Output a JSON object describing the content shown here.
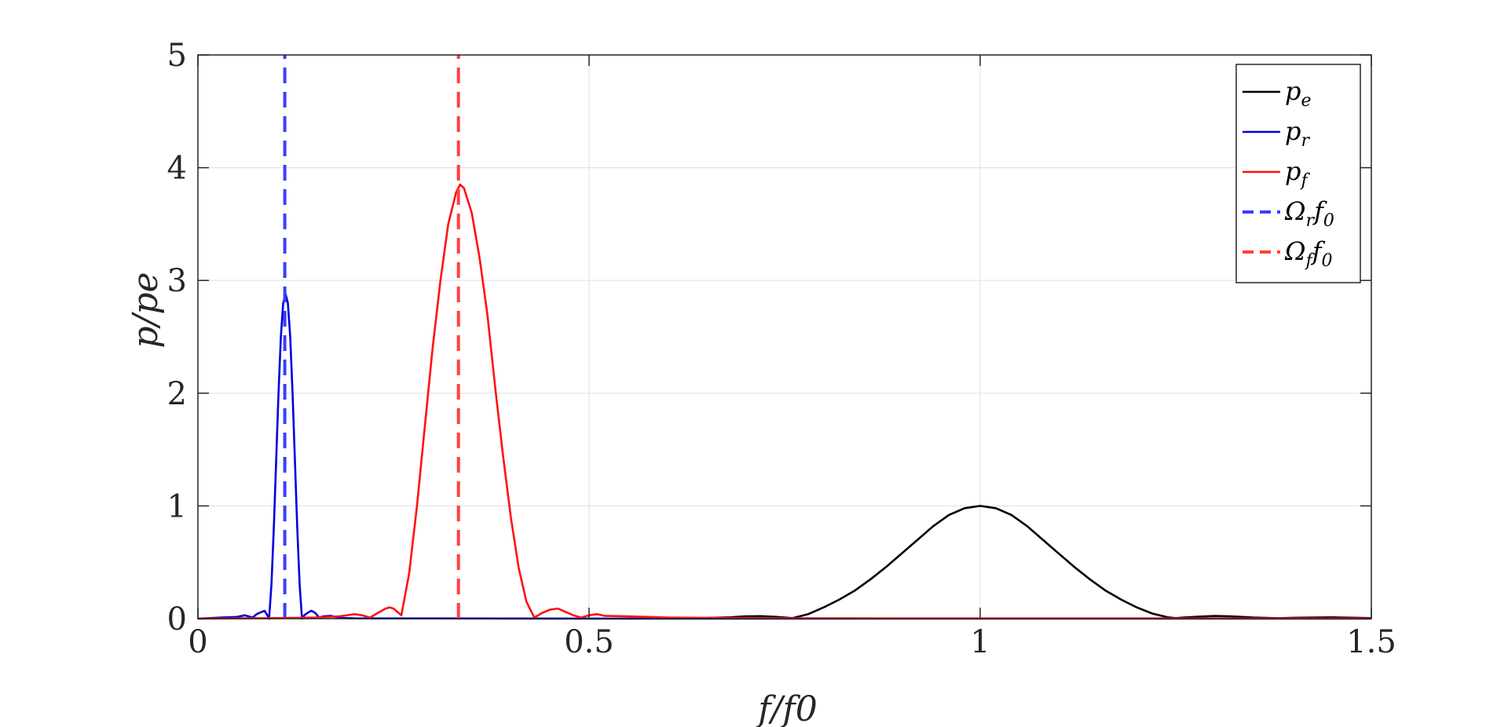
{
  "chart_data": {
    "type": "line",
    "title": "",
    "xlabel": "f/f0",
    "ylabel": "p/pe",
    "xlim": [
      0,
      1.5
    ],
    "ylim": [
      0,
      5
    ],
    "xticks": [
      "0",
      "0.5",
      "1",
      "1.5"
    ],
    "yticks": [
      "0",
      "1",
      "2",
      "3",
      "4",
      "5"
    ],
    "grid": true,
    "legend_position": "top-right",
    "series": [
      {
        "name": "p_e",
        "color": "#000000",
        "style": "solid",
        "x": [
          0.6,
          0.64,
          0.68,
          0.7,
          0.72,
          0.74,
          0.75,
          0.76,
          0.78,
          0.8,
          0.82,
          0.84,
          0.86,
          0.88,
          0.9,
          0.92,
          0.94,
          0.96,
          0.98,
          1.0,
          1.02,
          1.04,
          1.06,
          1.08,
          1.1,
          1.12,
          1.14,
          1.16,
          1.18,
          1.2,
          1.22,
          1.24,
          1.25,
          1.26,
          1.28,
          1.3,
          1.32,
          1.35,
          1.38,
          1.4,
          1.45,
          1.5
        ],
        "y": [
          0.003,
          0.004,
          0.012,
          0.02,
          0.022,
          0.015,
          0.01,
          0.005,
          0.04,
          0.1,
          0.17,
          0.25,
          0.35,
          0.46,
          0.58,
          0.7,
          0.82,
          0.92,
          0.98,
          1.0,
          0.98,
          0.92,
          0.82,
          0.7,
          0.58,
          0.46,
          0.35,
          0.25,
          0.17,
          0.1,
          0.045,
          0.012,
          0.005,
          0.01,
          0.018,
          0.024,
          0.02,
          0.01,
          0.004,
          0.008,
          0.012,
          0.005
        ]
      },
      {
        "name": "p_r",
        "color": "#0000dd",
        "style": "solid",
        "x": [
          0.0,
          0.03,
          0.05,
          0.06,
          0.07,
          0.075,
          0.08,
          0.085,
          0.088,
          0.091,
          0.094,
          0.097,
          0.1,
          0.103,
          0.106,
          0.109,
          0.112,
          0.115,
          0.118,
          0.121,
          0.124,
          0.127,
          0.13,
          0.133,
          0.136,
          0.14,
          0.145,
          0.15,
          0.155,
          0.16,
          0.17,
          0.18,
          0.2,
          0.3,
          0.5,
          1.0,
          1.5
        ],
        "y": [
          0.0,
          0.01,
          0.015,
          0.03,
          0.01,
          0.04,
          0.055,
          0.07,
          0.04,
          0.0,
          0.3,
          0.8,
          1.4,
          2.0,
          2.5,
          2.8,
          2.88,
          2.8,
          2.5,
          2.0,
          1.4,
          0.8,
          0.3,
          0.0,
          0.03,
          0.05,
          0.07,
          0.05,
          0.01,
          0.02,
          0.025,
          0.008,
          0.003,
          0.002,
          0.001,
          0.001,
          0.001
        ]
      },
      {
        "name": "p_f",
        "color": "#ff1010",
        "style": "solid",
        "x": [
          0.0,
          0.1,
          0.15,
          0.18,
          0.2,
          0.21,
          0.22,
          0.23,
          0.24,
          0.245,
          0.25,
          0.255,
          0.26,
          0.27,
          0.28,
          0.29,
          0.3,
          0.31,
          0.32,
          0.33,
          0.335,
          0.34,
          0.35,
          0.36,
          0.37,
          0.38,
          0.39,
          0.4,
          0.41,
          0.42,
          0.43,
          0.44,
          0.45,
          0.46,
          0.47,
          0.48,
          0.49,
          0.5,
          0.51,
          0.52,
          0.55,
          0.6,
          0.7,
          0.8,
          1.0,
          1.5
        ],
        "y": [
          0.0,
          0.005,
          0.01,
          0.02,
          0.04,
          0.03,
          0.01,
          0.05,
          0.09,
          0.1,
          0.09,
          0.06,
          0.03,
          0.4,
          1.0,
          1.7,
          2.4,
          3.0,
          3.5,
          3.78,
          3.85,
          3.82,
          3.6,
          3.2,
          2.7,
          2.05,
          1.45,
          0.9,
          0.45,
          0.15,
          0.01,
          0.05,
          0.08,
          0.09,
          0.06,
          0.03,
          0.01,
          0.03,
          0.04,
          0.025,
          0.02,
          0.01,
          0.005,
          0.003,
          0.002,
          0.002
        ]
      },
      {
        "name": "Ω_r f_0",
        "color": "#3c3cff",
        "style": "dashed",
        "x": [
          0.111,
          0.111
        ],
        "y": [
          0,
          5
        ]
      },
      {
        "name": "Ω_f f_0",
        "color": "#ff4040",
        "style": "dashed",
        "x": [
          0.333,
          0.333
        ],
        "y": [
          0,
          5
        ]
      }
    ]
  }
}
